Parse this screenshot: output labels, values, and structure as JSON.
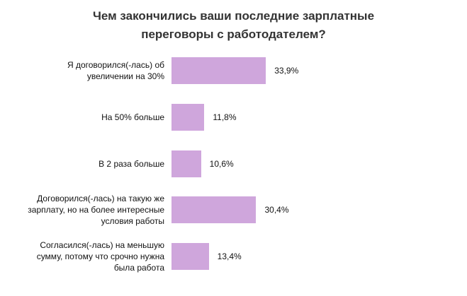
{
  "chart_data": {
    "type": "bar",
    "orientation": "horizontal",
    "title": "Чем закончились ваши последние зарплатные\nпереговоры с работодателем?",
    "categories": [
      "Я договорился(-лась)  об\nувеличении на 30%",
      "На 50% больше",
      "В 2 раза больше",
      "Договорился(-лась)  на такую же\nзарплату,  но на более  интересные\nусловия  работы",
      "Согласился(-лась)   на меньшую\nсумму, потому что срочно нужна\nбыла  работа"
    ],
    "values": [
      33.9,
      11.8,
      10.6,
      30.4,
      13.4
    ],
    "value_labels": [
      "33,9%",
      "11,8%",
      "10,6%",
      "30,4%",
      "13,4%"
    ],
    "color": "#cfa6dc"
  }
}
